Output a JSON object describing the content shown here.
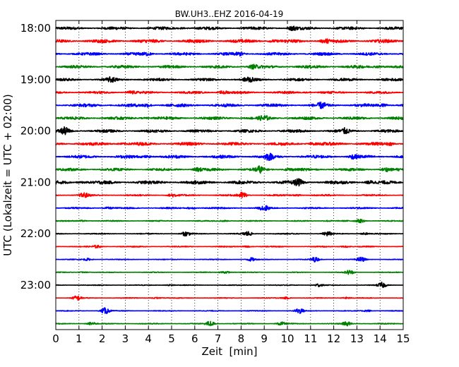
{
  "chart_data": {
    "type": "line",
    "title": "BW.UH3..EHZ 2016-04-19",
    "xlabel": "Zeit  [min]",
    "ylabel": "UTC (Lokalzeit = UTC + 02:00)",
    "xlim": [
      0,
      15
    ],
    "x_ticks": [
      "0",
      "1",
      "2",
      "3",
      "4",
      "5",
      "6",
      "7",
      "8",
      "9",
      "10",
      "11",
      "12",
      "13",
      "14",
      "15"
    ],
    "y_tick_labels": [
      "18:00",
      "19:00",
      "20:00",
      "21:00",
      "22:00",
      "23:00"
    ],
    "trace_interval_min": 15,
    "grid": "vertical dotted lines at each minute",
    "colors_cycle": [
      "#000000",
      "#ff0000",
      "#0000ff",
      "#008000"
    ],
    "traces": [
      {
        "start": "18:00",
        "color": "#000000",
        "amplitude": 0.22,
        "events": [
          [
            5.5,
            0.32
          ],
          [
            10.2,
            0.36
          ]
        ]
      },
      {
        "start": "18:15",
        "color": "#ff0000",
        "amplitude": 0.26,
        "events": [
          [
            9.3,
            0.4
          ],
          [
            11.6,
            0.4
          ]
        ]
      },
      {
        "start": "18:30",
        "color": "#0000ff",
        "amplitude": 0.22,
        "events": [
          [
            4.0,
            0.3
          ],
          [
            8.0,
            0.3
          ]
        ]
      },
      {
        "start": "18:45",
        "color": "#008000",
        "amplitude": 0.22,
        "events": [
          [
            8.5,
            0.4
          ],
          [
            14.0,
            0.7
          ]
        ]
      },
      {
        "start": "19:00",
        "color": "#000000",
        "amplitude": 0.2,
        "events": [
          [
            2.4,
            0.3
          ],
          [
            8.3,
            0.35
          ]
        ]
      },
      {
        "start": "19:15",
        "color": "#ff0000",
        "amplitude": 0.18,
        "events": [
          [
            3.2,
            0.45
          ],
          [
            7.2,
            0.6
          ],
          [
            10.9,
            0.3
          ]
        ]
      },
      {
        "start": "19:30",
        "color": "#0000ff",
        "amplitude": 0.24,
        "events": [
          [
            4.0,
            0.55
          ],
          [
            11.5,
            0.35
          ],
          [
            14.2,
            0.45
          ]
        ]
      },
      {
        "start": "19:45",
        "color": "#008000",
        "amplitude": 0.22,
        "events": [
          [
            3.8,
            0.4
          ],
          [
            9.0,
            0.35
          ]
        ]
      },
      {
        "start": "20:00",
        "color": "#000000",
        "amplitude": 0.22,
        "events": [
          [
            0.4,
            0.5
          ],
          [
            12.5,
            0.35
          ]
        ]
      },
      {
        "start": "20:15",
        "color": "#ff0000",
        "amplitude": 0.24,
        "events": [
          [
            2.8,
            0.4
          ],
          [
            11.0,
            0.4
          ],
          [
            14.5,
            0.4
          ]
        ]
      },
      {
        "start": "20:30",
        "color": "#0000ff",
        "amplitude": 0.24,
        "events": [
          [
            4.0,
            0.55
          ],
          [
            9.2,
            0.4
          ],
          [
            12.8,
            0.35
          ]
        ]
      },
      {
        "start": "20:45",
        "color": "#008000",
        "amplitude": 0.2,
        "events": [
          [
            6.1,
            0.4
          ],
          [
            8.8,
            0.45
          ],
          [
            10.0,
            0.4
          ],
          [
            14.2,
            0.4
          ]
        ]
      },
      {
        "start": "21:00",
        "color": "#000000",
        "amplitude": 0.26,
        "events": [
          [
            1.1,
            0.4
          ],
          [
            10.5,
            0.5
          ],
          [
            13.5,
            0.45
          ]
        ]
      },
      {
        "start": "21:15",
        "color": "#ff0000",
        "amplitude": 0.12,
        "events": [
          [
            1.2,
            0.4
          ],
          [
            5.0,
            0.4
          ],
          [
            8.1,
            0.8
          ],
          [
            10.5,
            0.4
          ]
        ]
      },
      {
        "start": "21:30",
        "color": "#0000ff",
        "amplitude": 0.12,
        "events": [
          [
            2.2,
            0.4
          ],
          [
            5.9,
            0.6
          ],
          [
            9.0,
            0.4
          ]
        ]
      },
      {
        "start": "21:45",
        "color": "#008000",
        "amplitude": 0.08,
        "events": [
          [
            1.2,
            0.3
          ],
          [
            7.3,
            0.35
          ],
          [
            11.7,
            0.35
          ],
          [
            13.2,
            0.6
          ]
        ]
      },
      {
        "start": "22:00",
        "color": "#000000",
        "amplitude": 0.08,
        "events": [
          [
            5.6,
            0.4
          ],
          [
            8.3,
            0.45
          ],
          [
            11.7,
            0.4
          ],
          [
            13.3,
            0.4
          ]
        ]
      },
      {
        "start": "22:15",
        "color": "#ff0000",
        "amplitude": 0.08,
        "events": [
          [
            1.8,
            0.3
          ],
          [
            8.3,
            0.45
          ],
          [
            12.5,
            0.5
          ]
        ]
      },
      {
        "start": "22:30",
        "color": "#0000ff",
        "amplitude": 0.06,
        "events": [
          [
            1.4,
            0.35
          ],
          [
            8.4,
            0.4
          ],
          [
            11.2,
            0.4
          ],
          [
            13.2,
            0.4
          ]
        ]
      },
      {
        "start": "22:45",
        "color": "#008000",
        "amplitude": 0.06,
        "events": [
          [
            1.2,
            0.4
          ],
          [
            7.3,
            0.9
          ],
          [
            12.7,
            0.4
          ]
        ]
      },
      {
        "start": "23:00",
        "color": "#000000",
        "amplitude": 0.06,
        "events": [
          [
            4.9,
            0.4
          ],
          [
            11.3,
            0.4
          ],
          [
            14.1,
            0.45
          ]
        ]
      },
      {
        "start": "23:15",
        "color": "#ff0000",
        "amplitude": 0.06,
        "events": [
          [
            0.9,
            0.4
          ],
          [
            4.3,
            0.4
          ],
          [
            10.0,
            0.4
          ],
          [
            12.5,
            0.4
          ]
        ]
      },
      {
        "start": "23:30",
        "color": "#0000ff",
        "amplitude": 0.06,
        "events": [
          [
            2.1,
            0.8
          ],
          [
            10.5,
            0.45
          ],
          [
            13.5,
            0.4
          ]
        ]
      },
      {
        "start": "23:45",
        "color": "#008000",
        "amplitude": 0.07,
        "events": [
          [
            1.5,
            0.4
          ],
          [
            6.7,
            0.7
          ],
          [
            9.7,
            0.4
          ],
          [
            12.6,
            0.4
          ]
        ]
      }
    ]
  }
}
